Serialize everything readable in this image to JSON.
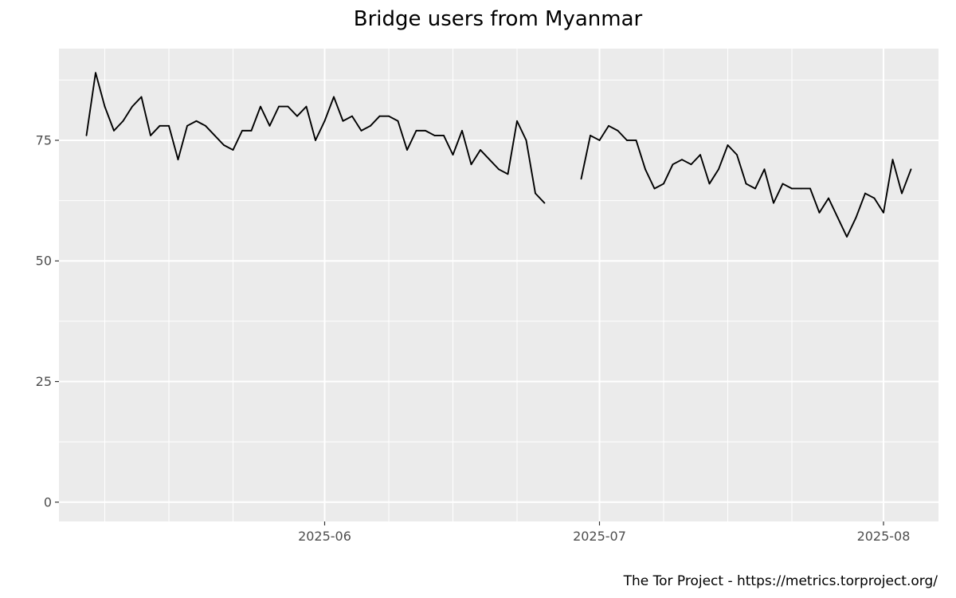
{
  "chart_data": {
    "type": "line",
    "title": "Bridge users from Myanmar",
    "caption": "The Tor Project - https://metrics.torproject.org/",
    "xlabel": "",
    "ylabel": "",
    "x_range": [
      "2025-05-03",
      "2025-08-07"
    ],
    "ylim": [
      -4,
      94
    ],
    "y_ticks": [
      0,
      25,
      50,
      75
    ],
    "x_ticks": [
      {
        "date": "2025-06-01",
        "label": "2025-06"
      },
      {
        "date": "2025-07-01",
        "label": "2025-07"
      },
      {
        "date": "2025-08-01",
        "label": "2025-08"
      }
    ],
    "x_minor_ticks": [
      "2025-05-08",
      "2025-05-15",
      "2025-05-22",
      "2025-06-08",
      "2025-06-15",
      "2025-06-22",
      "2025-07-08",
      "2025-07-15",
      "2025-07-22"
    ],
    "grid": true,
    "background": "#ebebeb",
    "line_color": "#000000",
    "series": [
      {
        "segments": [
          {
            "start_date": "2025-05-06",
            "values": [
              76,
              89,
              82,
              77,
              79,
              82,
              84,
              76,
              78,
              78,
              71,
              78,
              79,
              78,
              76,
              74,
              73,
              77,
              77,
              82,
              78,
              82,
              82,
              80,
              82,
              75,
              79,
              84,
              79,
              80,
              77,
              78,
              80,
              80,
              79,
              73,
              77,
              77,
              76,
              76,
              72,
              77,
              70,
              73,
              71,
              69,
              68,
              79,
              75,
              64,
              62
            ]
          },
          {
            "start_date": "2025-06-29",
            "values": [
              67,
              76,
              75,
              78,
              77,
              75,
              75,
              69,
              65,
              66,
              70,
              71,
              70,
              72,
              66,
              69,
              74,
              72,
              66,
              65,
              69,
              62,
              66,
              65,
              65,
              65,
              60,
              63,
              59,
              55,
              59,
              64,
              63,
              60,
              71,
              64,
              69
            ]
          }
        ]
      }
    ]
  }
}
